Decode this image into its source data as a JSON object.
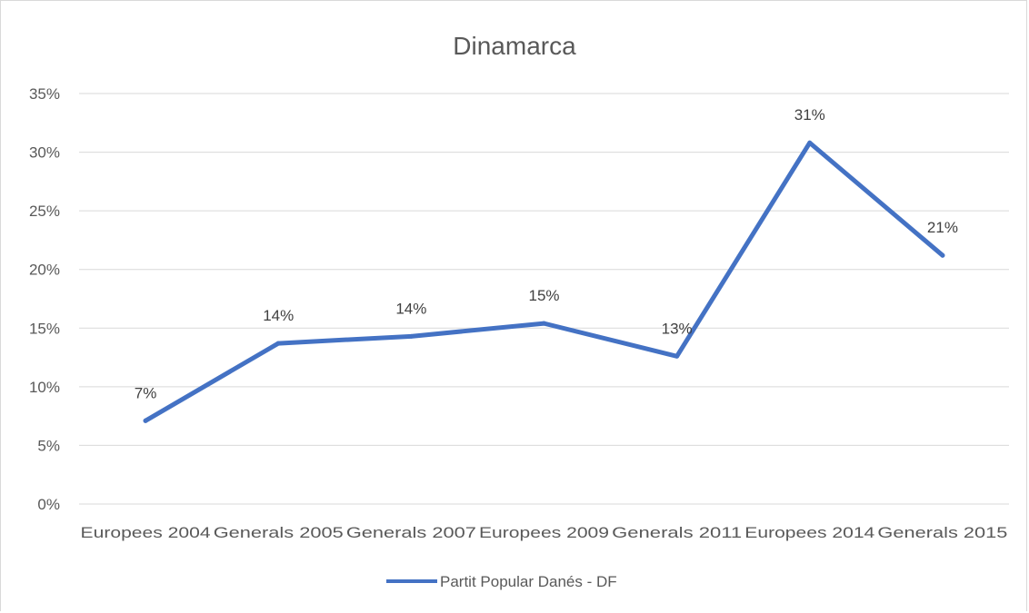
{
  "chart_data": {
    "type": "line",
    "title": "Dinamarca",
    "categories": [
      "Europees 2004",
      "Generals 2005",
      "Generals 2007",
      "Europees 2009",
      "Generals 2011",
      "Europees 2014",
      "Generals 2015"
    ],
    "series": [
      {
        "name": "Partit Popular Danés - DF",
        "values": [
          0.071,
          0.137,
          0.143,
          0.154,
          0.126,
          0.308,
          0.212
        ],
        "data_labels": [
          "7%",
          "14%",
          "14%",
          "15%",
          "13%",
          "31%",
          "21%"
        ],
        "color": "#4472c4"
      }
    ],
    "y_ticks": [
      "0%",
      "5%",
      "10%",
      "15%",
      "20%",
      "25%",
      "30%",
      "35%"
    ],
    "ylim": [
      0,
      0.35
    ],
    "grid": true,
    "legend_position": "bottom"
  }
}
